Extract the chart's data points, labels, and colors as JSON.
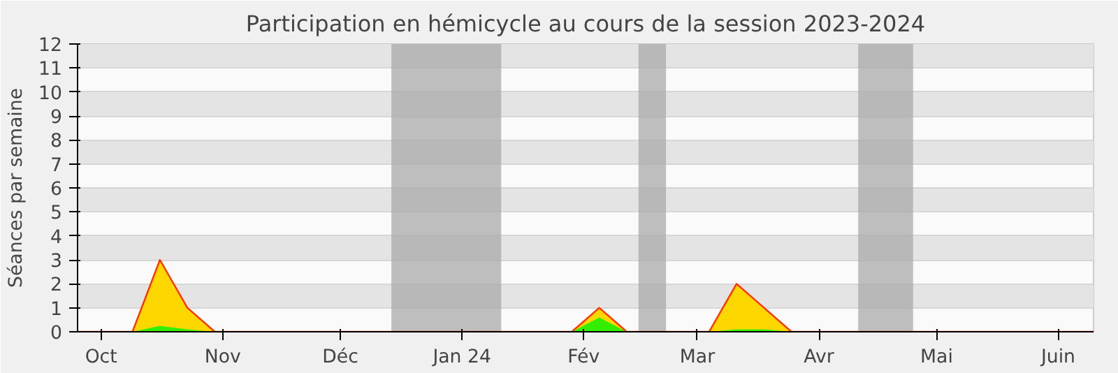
{
  "chart_data": {
    "type": "area",
    "title": "Participation en hémicycle au cours de la session 2023-2024",
    "ylabel": "Séances par semaine",
    "x": [
      "2023-09-25",
      "2023-10-02",
      "2023-10-09",
      "2023-10-16",
      "2023-10-23",
      "2023-10-30",
      "2023-11-06",
      "2023-11-13",
      "2023-11-20",
      "2023-11-27",
      "2023-12-04",
      "2023-12-11",
      "2023-12-18",
      "2023-12-25",
      "2024-01-01",
      "2024-01-08",
      "2024-01-15",
      "2024-01-22",
      "2024-01-29",
      "2024-02-05",
      "2024-02-12",
      "2024-02-19",
      "2024-02-26",
      "2024-03-04",
      "2024-03-11",
      "2024-03-18",
      "2024-03-25",
      "2024-04-01",
      "2024-04-08",
      "2024-04-15",
      "2024-04-22",
      "2024-04-29",
      "2024-05-06",
      "2024-05-13",
      "2024-05-20",
      "2024-05-27",
      "2024-06-03",
      "2024-06-10"
    ],
    "series": [
      {
        "color": "#ffd700",
        "values": [
          0,
          0,
          0,
          3,
          1,
          0,
          0,
          0,
          0,
          0,
          0,
          0,
          0,
          0,
          0,
          0,
          0,
          0,
          0,
          1,
          0,
          0,
          0,
          0,
          2,
          1,
          0,
          0,
          0,
          0,
          0,
          0,
          0,
          0,
          0,
          0,
          0,
          0
        ]
      },
      {
        "color": "#33ee00",
        "values": [
          0,
          0,
          0,
          0.25,
          0.1,
          0,
          0,
          0,
          0,
          0,
          0,
          0,
          0,
          0,
          0,
          0,
          0,
          0,
          0,
          0.6,
          0,
          0,
          0,
          0,
          0.1,
          0.1,
          0,
          0,
          0,
          0,
          0,
          0,
          0,
          0,
          0,
          0,
          0,
          0
        ]
      }
    ],
    "xlim": [
      "2023-09-25",
      "2024-06-10"
    ],
    "xticks": [
      {
        "value": "2023-10-01",
        "label": "Oct"
      },
      {
        "value": "2023-11-01",
        "label": "Nov"
      },
      {
        "value": "2023-12-01",
        "label": "Déc"
      },
      {
        "value": "2024-01-01",
        "label": "Jan 24"
      },
      {
        "value": "2024-02-01",
        "label": "Fév"
      },
      {
        "value": "2024-03-01",
        "label": "Mar"
      },
      {
        "value": "2024-04-01",
        "label": "Avr"
      },
      {
        "value": "2024-05-01",
        "label": "Mai"
      },
      {
        "value": "2024-06-01",
        "label": "Juin"
      }
    ],
    "ylim": [
      0,
      12
    ],
    "yticks": [
      0,
      1,
      2,
      3,
      4,
      5,
      6,
      7,
      8,
      9,
      10,
      11,
      12
    ],
    "grid": "y",
    "bands": [
      {
        "axis": "x",
        "from": "2023-12-14",
        "to": "2024-01-11",
        "color": "#aaaaaa"
      },
      {
        "axis": "x",
        "from": "2024-02-15",
        "to": "2024-02-22",
        "color": "#aaaaaa"
      },
      {
        "axis": "x",
        "from": "2024-04-11",
        "to": "2024-04-25",
        "color": "#aaaaaa"
      }
    ]
  }
}
